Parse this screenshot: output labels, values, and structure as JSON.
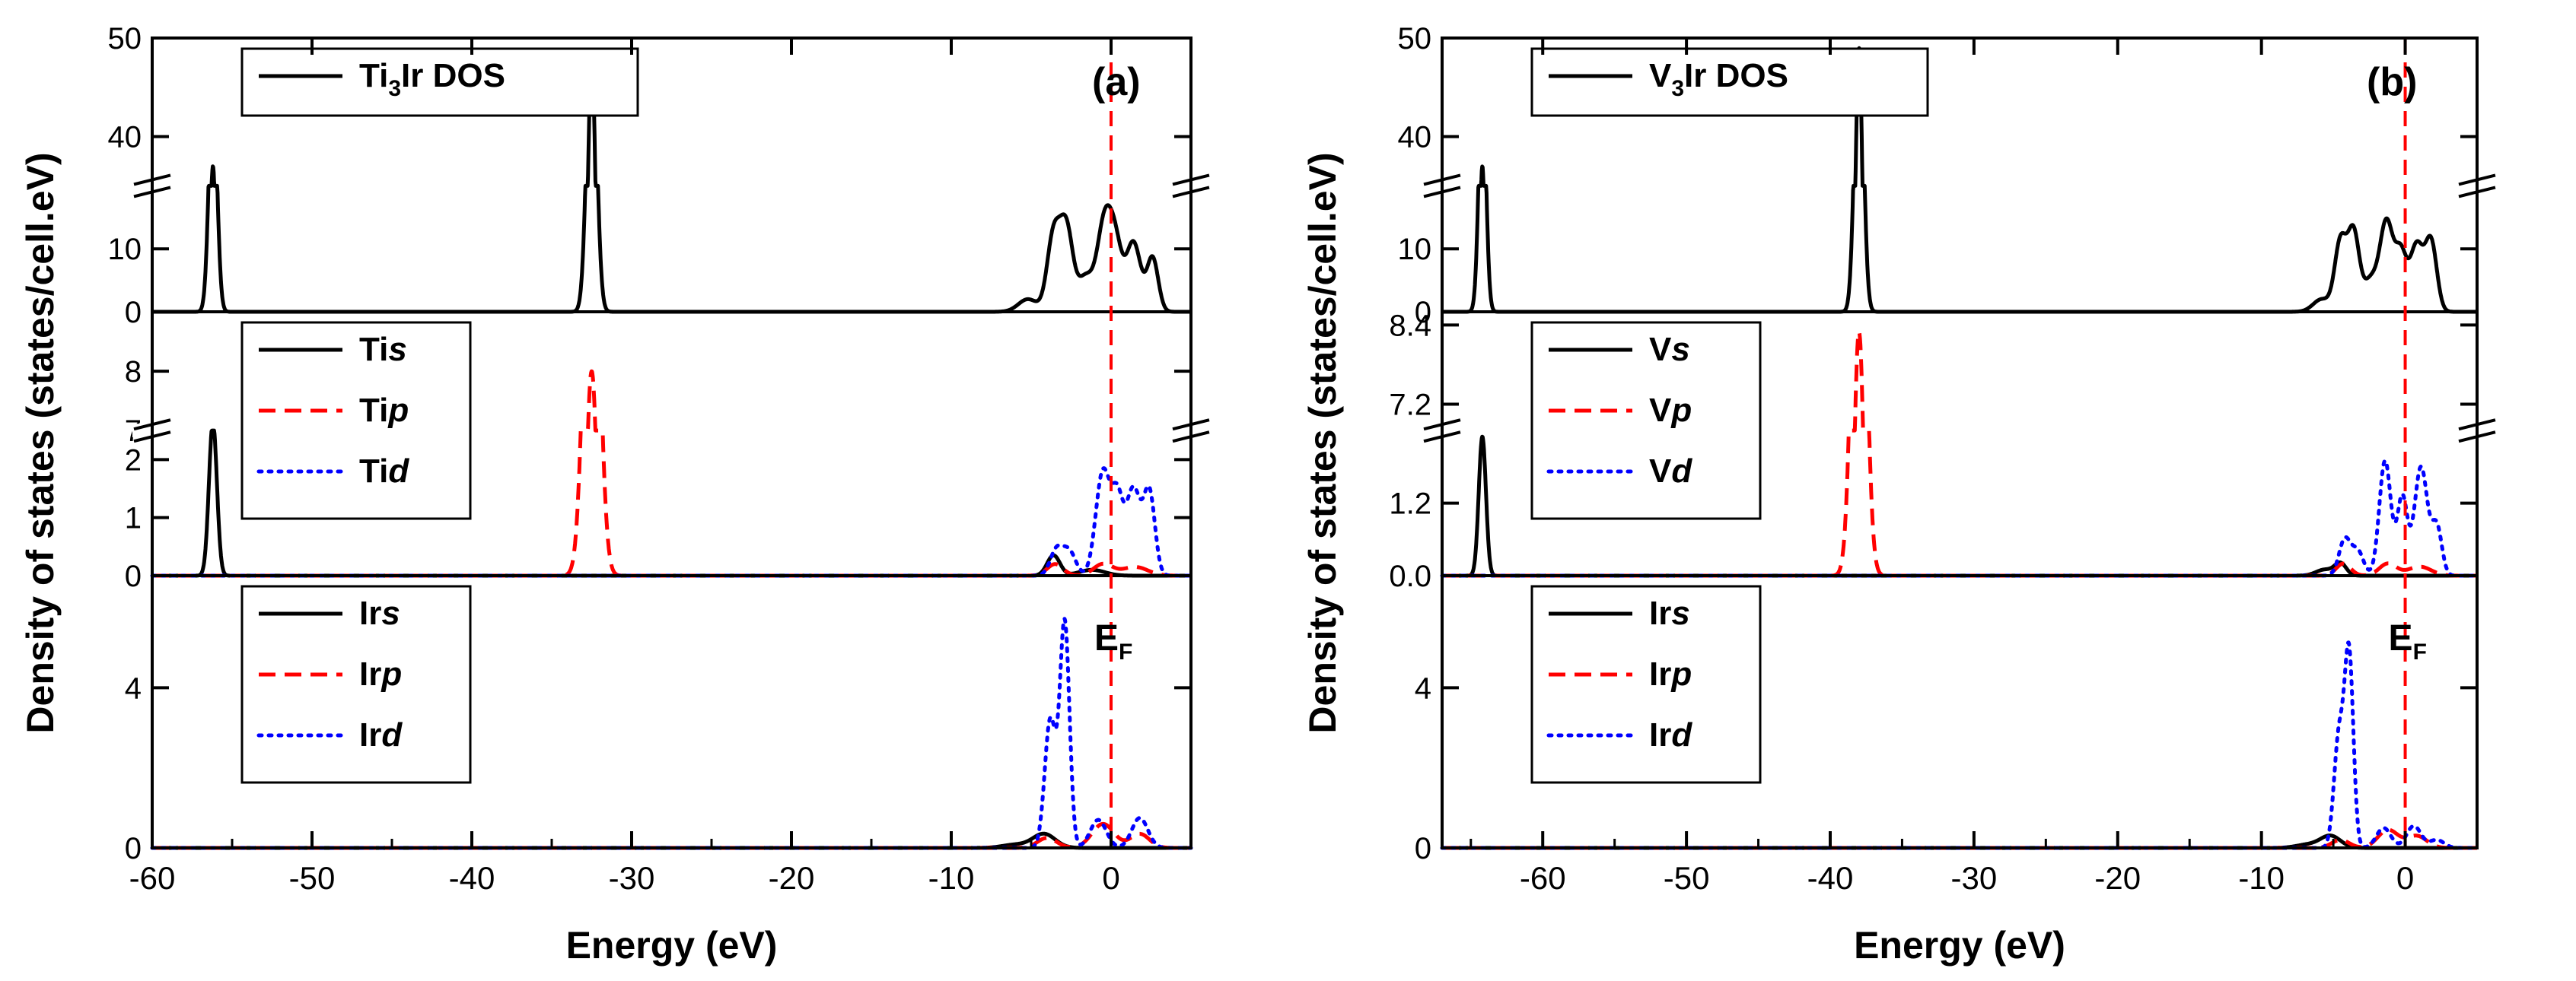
{
  "colors": {
    "axis": "#000000",
    "black": "#000000",
    "red": "#ff0000",
    "blue": "#0000ff",
    "fermi": "#ff0000"
  },
  "figure_labels": {
    "ylabel": "Density of states (states/cell.eV)",
    "xlabel": "Energy (eV)",
    "fermi": "E",
    "fermi_sub": "F"
  },
  "chart_data": [
    {
      "type": "line",
      "panel_label": "(a)",
      "xlim": [
        -60,
        5
      ],
      "xticks": [
        -60,
        -50,
        -40,
        -30,
        -20,
        -10,
        0
      ],
      "xlabel": "Energy (eV)",
      "ylabel": "Density of states (states/cell.eV)",
      "fermi_level": 0,
      "subplots": [
        {
          "name": "total",
          "broken_axis": {
            "lower": [
              0,
              20
            ],
            "upper": [
              35,
              50
            ],
            "break_at": 0.46
          },
          "yticks": [
            {
              "v": 0,
              "t": "0"
            },
            {
              "v": 10,
              "t": "10"
            },
            {
              "v": 40,
              "t": "40"
            },
            {
              "v": 50,
              "t": "50"
            }
          ],
          "legend": [
            {
              "label": "Ti",
              "sub": "3",
              "label2": "Ir DOS",
              "color": "black",
              "dash": "solid"
            }
          ],
          "series": [
            {
              "name": "Ti3Ir DOS",
              "color": "black",
              "dash": "solid",
              "peaks": [
                {
                  "c": -56.2,
                  "h": 37,
                  "w": 0.25
                },
                {
                  "c": -32.5,
                  "h": 48,
                  "w": 0.3
                },
                {
                  "c": -5.2,
                  "h": 2,
                  "w": 0.6
                },
                {
                  "c": -3.6,
                  "h": 12,
                  "w": 0.4
                },
                {
                  "c": -2.8,
                  "h": 13,
                  "w": 0.4
                },
                {
                  "c": -1.6,
                  "h": 5.5,
                  "w": 0.5
                },
                {
                  "c": -0.4,
                  "h": 14,
                  "w": 0.45
                },
                {
                  "c": 0.3,
                  "h": 9,
                  "w": 0.4
                },
                {
                  "c": 1.4,
                  "h": 11,
                  "w": 0.45
                },
                {
                  "c": 2.6,
                  "h": 8.5,
                  "w": 0.35
                }
              ]
            }
          ]
        },
        {
          "name": "Ti",
          "broken_axis": {
            "lower": [
              0,
              2.5
            ],
            "upper": [
              7,
              9
            ],
            "break_at": 0.55
          },
          "yticks": [
            {
              "v": 0,
              "t": "0"
            },
            {
              "v": 1,
              "t": "1"
            },
            {
              "v": 2,
              "t": "2"
            },
            {
              "v": 7,
              "t": "7"
            },
            {
              "v": 8,
              "t": "8"
            }
          ],
          "legend": [
            {
              "label": "Ti",
              "italic": "s",
              "color": "black",
              "dash": "solid"
            },
            {
              "label": "Ti",
              "italic": "p",
              "color": "red",
              "dash": "dashed"
            },
            {
              "label": "Ti",
              "italic": "d",
              "color": "blue",
              "dash": "dotted"
            }
          ],
          "series": [
            {
              "name": "Ti s",
              "color": "black",
              "dash": "solid",
              "peaks": [
                {
                  "c": -56.2,
                  "h": 2.65,
                  "w": 0.25
                },
                {
                  "c": -3.6,
                  "h": 0.35,
                  "w": 0.4
                },
                {
                  "c": -1.2,
                  "h": 0.1,
                  "w": 0.8
                }
              ]
            },
            {
              "name": "Ti p",
              "color": "red",
              "dash": "dashed",
              "peaks": [
                {
                  "c": -32.5,
                  "h": 8,
                  "w": 0.45
                },
                {
                  "c": -3.5,
                  "h": 0.2,
                  "w": 0.5
                },
                {
                  "c": -0.5,
                  "h": 0.2,
                  "w": 0.6
                },
                {
                  "c": 1.5,
                  "h": 0.15,
                  "w": 0.8
                }
              ]
            },
            {
              "name": "Ti d",
              "color": "blue",
              "dash": "dotted",
              "peaks": [
                {
                  "c": -3.4,
                  "h": 0.45,
                  "w": 0.4
                },
                {
                  "c": -2.6,
                  "h": 0.4,
                  "w": 0.4
                },
                {
                  "c": -0.5,
                  "h": 1.8,
                  "w": 0.45
                },
                {
                  "c": 0.4,
                  "h": 1.2,
                  "w": 0.35
                },
                {
                  "c": 1.4,
                  "h": 1.5,
                  "w": 0.45
                },
                {
                  "c": 2.4,
                  "h": 1.4,
                  "w": 0.35
                }
              ]
            }
          ]
        },
        {
          "name": "Ir",
          "ylim": [
            0,
            6.8
          ],
          "yticks": [
            {
              "v": 0,
              "t": "0"
            },
            {
              "v": 4,
              "t": "4"
            }
          ],
          "legend": [
            {
              "label": "Ir",
              "italic": "s",
              "color": "black",
              "dash": "solid"
            },
            {
              "label": "Ir",
              "italic": "p",
              "color": "red",
              "dash": "dashed"
            },
            {
              "label": "Ir",
              "italic": "d",
              "color": "blue",
              "dash": "dotted"
            }
          ],
          "series": [
            {
              "name": "Ir s",
              "color": "black",
              "dash": "solid",
              "peaks": [
                {
                  "c": -4.2,
                  "h": 0.35,
                  "w": 0.7
                },
                {
                  "c": -6,
                  "h": 0.08,
                  "w": 0.8
                }
              ]
            },
            {
              "name": "Ir p",
              "color": "red",
              "dash": "dashed",
              "peaks": [
                {
                  "c": -4,
                  "h": 0.25,
                  "w": 0.6
                },
                {
                  "c": -0.5,
                  "h": 0.6,
                  "w": 0.7
                },
                {
                  "c": 1.8,
                  "h": 0.35,
                  "w": 0.6
                }
              ]
            },
            {
              "name": "Ir d",
              "color": "blue",
              "dash": "dotted",
              "peaks": [
                {
                  "c": -3.8,
                  "h": 3.2,
                  "w": 0.35
                },
                {
                  "c": -2.9,
                  "h": 5.6,
                  "w": 0.3
                },
                {
                  "c": -0.8,
                  "h": 0.7,
                  "w": 0.5
                },
                {
                  "c": 1.8,
                  "h": 0.75,
                  "w": 0.5
                }
              ]
            }
          ]
        }
      ]
    },
    {
      "type": "line",
      "panel_label": "(b)",
      "xlim": [
        -67,
        5
      ],
      "xticks": [
        -60,
        -50,
        -40,
        -30,
        -20,
        -10,
        0
      ],
      "xlabel": "Energy (eV)",
      "ylabel": "Density of states (states/cell.eV)",
      "fermi_level": 0,
      "subplots": [
        {
          "name": "total",
          "broken_axis": {
            "lower": [
              0,
              20
            ],
            "upper": [
              35,
              50
            ],
            "break_at": 0.46
          },
          "yticks": [
            {
              "v": 0,
              "t": "0"
            },
            {
              "v": 10,
              "t": "10"
            },
            {
              "v": 40,
              "t": "40"
            },
            {
              "v": 50,
              "t": "50"
            }
          ],
          "legend": [
            {
              "label": "V",
              "sub": "3",
              "label2": "Ir DOS",
              "color": "black",
              "dash": "solid"
            }
          ],
          "series": [
            {
              "name": "V3Ir DOS",
              "color": "black",
              "dash": "solid",
              "peaks": [
                {
                  "c": -64.2,
                  "h": 37,
                  "w": 0.25
                },
                {
                  "c": -38,
                  "h": 49,
                  "w": 0.3
                },
                {
                  "c": -5.8,
                  "h": 2,
                  "w": 0.6
                },
                {
                  "c": -4.5,
                  "h": 11,
                  "w": 0.4
                },
                {
                  "c": -3.6,
                  "h": 12.5,
                  "w": 0.4
                },
                {
                  "c": -2.4,
                  "h": 5,
                  "w": 0.5
                },
                {
                  "c": -1.3,
                  "h": 14,
                  "w": 0.45
                },
                {
                  "c": -0.3,
                  "h": 9,
                  "w": 0.4
                },
                {
                  "c": 0.8,
                  "h": 10.5,
                  "w": 0.45
                },
                {
                  "c": 1.8,
                  "h": 11,
                  "w": 0.4
                }
              ]
            }
          ]
        },
        {
          "name": "V",
          "broken_axis": {
            "lower": [
              0,
              2.4
            ],
            "upper": [
              6.8,
              8.6
            ],
            "break_at": 0.55
          },
          "yticks": [
            {
              "v": 0,
              "t": "0.0"
            },
            {
              "v": 1.2,
              "t": "1.2"
            },
            {
              "v": 7.2,
              "t": "7.2"
            },
            {
              "v": 8.4,
              "t": "8.4"
            }
          ],
          "legend": [
            {
              "label": "V",
              "italic": "s",
              "color": "black",
              "dash": "solid"
            },
            {
              "label": "V",
              "italic": "p",
              "color": "red",
              "dash": "dashed"
            },
            {
              "label": "V",
              "italic": "d",
              "color": "blue",
              "dash": "dotted"
            }
          ],
          "series": [
            {
              "name": "V s",
              "color": "black",
              "dash": "solid",
              "peaks": [
                {
                  "c": -64.2,
                  "h": 2.3,
                  "w": 0.25
                },
                {
                  "c": -4.5,
                  "h": 0.2,
                  "w": 0.4
                },
                {
                  "c": -5.6,
                  "h": 0.1,
                  "w": 0.6
                }
              ]
            },
            {
              "name": "V p",
              "color": "red",
              "dash": "dashed",
              "peaks": [
                {
                  "c": -38,
                  "h": 8.3,
                  "w": 0.45
                },
                {
                  "c": -4.3,
                  "h": 0.2,
                  "w": 0.5
                },
                {
                  "c": -1.2,
                  "h": 0.2,
                  "w": 0.6
                },
                {
                  "c": 1,
                  "h": 0.15,
                  "w": 0.8
                }
              ]
            },
            {
              "name": "V d",
              "color": "blue",
              "dash": "dotted",
              "peaks": [
                {
                  "c": -4.2,
                  "h": 0.6,
                  "w": 0.4
                },
                {
                  "c": -3.3,
                  "h": 0.4,
                  "w": 0.4
                },
                {
                  "c": -1.4,
                  "h": 1.9,
                  "w": 0.4
                },
                {
                  "c": -0.2,
                  "h": 1.3,
                  "w": 0.35
                },
                {
                  "c": 1.1,
                  "h": 1.8,
                  "w": 0.45
                },
                {
                  "c": 2.2,
                  "h": 0.8,
                  "w": 0.35
                }
              ]
            }
          ]
        },
        {
          "name": "Ir",
          "ylim": [
            0,
            6.8
          ],
          "yticks": [
            {
              "v": 0,
              "t": "0"
            },
            {
              "v": 4,
              "t": "4"
            }
          ],
          "legend": [
            {
              "label": "Ir",
              "italic": "s",
              "color": "black",
              "dash": "solid"
            },
            {
              "label": "Ir",
              "italic": "p",
              "color": "red",
              "dash": "dashed"
            },
            {
              "label": "Ir",
              "italic": "d",
              "color": "blue",
              "dash": "dotted"
            }
          ],
          "series": [
            {
              "name": "Ir s",
              "color": "black",
              "dash": "solid",
              "peaks": [
                {
                  "c": -5.2,
                  "h": 0.3,
                  "w": 0.7
                },
                {
                  "c": -6.8,
                  "h": 0.08,
                  "w": 0.8
                }
              ]
            },
            {
              "name": "Ir p",
              "color": "red",
              "dash": "dashed",
              "peaks": [
                {
                  "c": -4.5,
                  "h": 0.2,
                  "w": 0.6
                },
                {
                  "c": -1.2,
                  "h": 0.45,
                  "w": 0.7
                },
                {
                  "c": 0.8,
                  "h": 0.3,
                  "w": 0.7
                }
              ]
            },
            {
              "name": "Ir d",
              "color": "blue",
              "dash": "dotted",
              "peaks": [
                {
                  "c": -4.6,
                  "h": 2.8,
                  "w": 0.35
                },
                {
                  "c": -3.9,
                  "h": 4.7,
                  "w": 0.3
                },
                {
                  "c": -1.5,
                  "h": 0.5,
                  "w": 0.5
                },
                {
                  "c": 0.6,
                  "h": 0.55,
                  "w": 0.5
                },
                {
                  "c": 2.2,
                  "h": 0.2,
                  "w": 0.5
                }
              ]
            }
          ]
        }
      ]
    }
  ]
}
